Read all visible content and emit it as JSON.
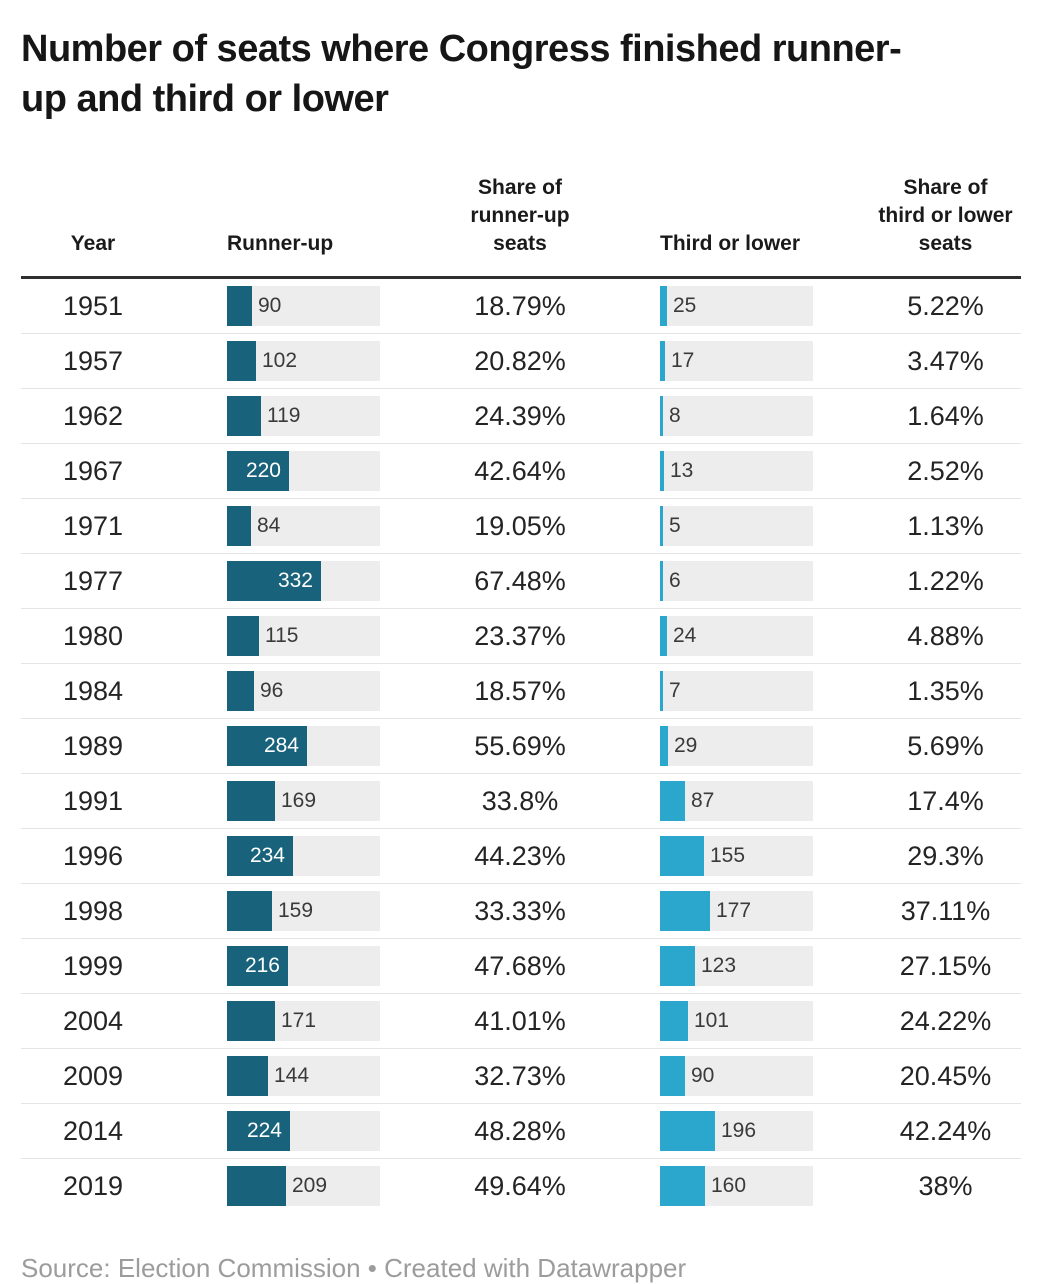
{
  "title": "Number of seats where Congress finished runner-up and third or lower",
  "header": {
    "year": "Year",
    "runner_up": "Runner-up",
    "share_runner_up": "Share of\nrunner-up\nseats",
    "third_or_lower": "Third or lower",
    "share_third": "Share of\nthird or lower\nseats"
  },
  "chart_data": {
    "type": "table",
    "title": "Number of seats where Congress finished runner-up and third or lower",
    "columns": [
      "Year",
      "Runner-up",
      "Share of runner-up seats",
      "Third or lower",
      "Share of third or lower seats"
    ],
    "bar_scale_max": 543,
    "bar_columns": [
      "Runner-up",
      "Third or lower"
    ],
    "rows": [
      {
        "year": "1951",
        "runner_up": 90,
        "runner_up_share": "18.79%",
        "third_or_lower": 25,
        "third_share": "5.22%"
      },
      {
        "year": "1957",
        "runner_up": 102,
        "runner_up_share": "20.82%",
        "third_or_lower": 17,
        "third_share": "3.47%"
      },
      {
        "year": "1962",
        "runner_up": 119,
        "runner_up_share": "24.39%",
        "third_or_lower": 8,
        "third_share": "1.64%"
      },
      {
        "year": "1967",
        "runner_up": 220,
        "runner_up_share": "42.64%",
        "third_or_lower": 13,
        "third_share": "2.52%"
      },
      {
        "year": "1971",
        "runner_up": 84,
        "runner_up_share": "19.05%",
        "third_or_lower": 5,
        "third_share": "1.13%"
      },
      {
        "year": "1977",
        "runner_up": 332,
        "runner_up_share": "67.48%",
        "third_or_lower": 6,
        "third_share": "1.22%"
      },
      {
        "year": "1980",
        "runner_up": 115,
        "runner_up_share": "23.37%",
        "third_or_lower": 24,
        "third_share": "4.88%"
      },
      {
        "year": "1984",
        "runner_up": 96,
        "runner_up_share": "18.57%",
        "third_or_lower": 7,
        "third_share": "1.35%"
      },
      {
        "year": "1989",
        "runner_up": 284,
        "runner_up_share": "55.69%",
        "third_or_lower": 29,
        "third_share": "5.69%"
      },
      {
        "year": "1991",
        "runner_up": 169,
        "runner_up_share": "33.8%",
        "third_or_lower": 87,
        "third_share": "17.4%"
      },
      {
        "year": "1996",
        "runner_up": 234,
        "runner_up_share": "44.23%",
        "third_or_lower": 155,
        "third_share": "29.3%"
      },
      {
        "year": "1998",
        "runner_up": 159,
        "runner_up_share": "33.33%",
        "third_or_lower": 177,
        "third_share": "37.11%"
      },
      {
        "year": "1999",
        "runner_up": 216,
        "runner_up_share": "47.68%",
        "third_or_lower": 123,
        "third_share": "27.15%"
      },
      {
        "year": "2004",
        "runner_up": 171,
        "runner_up_share": "41.01%",
        "third_or_lower": 101,
        "third_share": "24.22%"
      },
      {
        "year": "2009",
        "runner_up": 144,
        "runner_up_share": "32.73%",
        "third_or_lower": 90,
        "third_share": "20.45%"
      },
      {
        "year": "2014",
        "runner_up": 224,
        "runner_up_share": "48.28%",
        "third_or_lower": 196,
        "third_share": "42.24%"
      },
      {
        "year": "2019",
        "runner_up": 209,
        "runner_up_share": "49.64%",
        "third_or_lower": 160,
        "third_share": "38%"
      }
    ]
  },
  "colors": {
    "runner_up_bar": "#18627b",
    "third_or_lower_bar": "#2ba7cd",
    "bar_track": "#ededed",
    "header_rule": "#2f2f2f",
    "row_separator": "#e4e4e4"
  },
  "footer": {
    "text": "Source: Election Commission • Created with Datawrapper"
  }
}
